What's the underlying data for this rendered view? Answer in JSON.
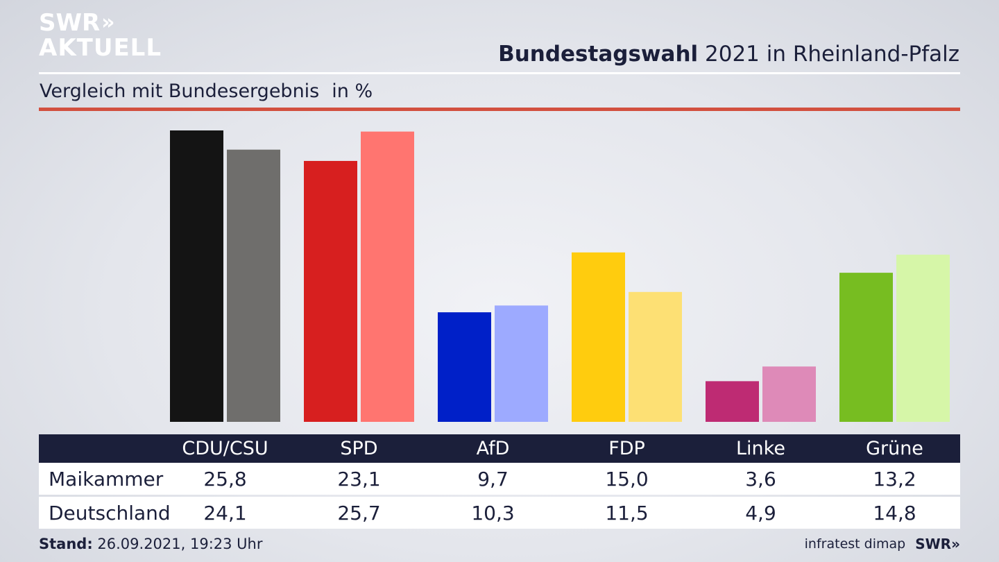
{
  "brand": {
    "logo_top": "SWR",
    "logo_arrows": "»",
    "logo_bottom": "AKTUELL"
  },
  "header": {
    "title_bold": "Bundestagswahl",
    "title_rest": " 2021 in Rheinland-Pfalz",
    "subtitle": "Vergleich mit Bundesergebnis",
    "unit": "in %"
  },
  "chart_data": {
    "type": "bar",
    "categories": [
      "CDU/CSU",
      "SPD",
      "AfD",
      "FDP",
      "Linke",
      "Grüne"
    ],
    "series": [
      {
        "name": "Maikammer",
        "values": [
          25.8,
          23.1,
          9.7,
          15.0,
          3.6,
          13.2
        ],
        "colors": [
          "#141414",
          "#d71f1f",
          "#0020c8",
          "#ffcc0e",
          "#be2b73",
          "#77bd21"
        ]
      },
      {
        "name": "Deutschland",
        "values": [
          24.1,
          25.7,
          10.3,
          11.5,
          4.9,
          14.8
        ],
        "colors": [
          "#6f6e6c",
          "#ff7570",
          "#9daaff",
          "#fde074",
          "#de8ab8",
          "#d6f6a8"
        ]
      }
    ],
    "ylim": [
      0,
      25.8
    ],
    "grid": false
  },
  "table": {
    "headers": [
      "CDU/CSU",
      "SPD",
      "AfD",
      "FDP",
      "Linke",
      "Grüne"
    ],
    "rows": [
      {
        "label": "Maikammer",
        "values": [
          "25,8",
          "23,1",
          "9,7",
          "15,0",
          "3,6",
          "13,2"
        ]
      },
      {
        "label": "Deutschland",
        "values": [
          "24,1",
          "25,7",
          "10,3",
          "11,5",
          "4,9",
          "14,8"
        ]
      }
    ]
  },
  "footer": {
    "stand_label": "Stand:",
    "stand_value": " 26.09.2021, 19:23 Uhr",
    "source": "infratest dimap",
    "source_logo": "SWR»"
  }
}
